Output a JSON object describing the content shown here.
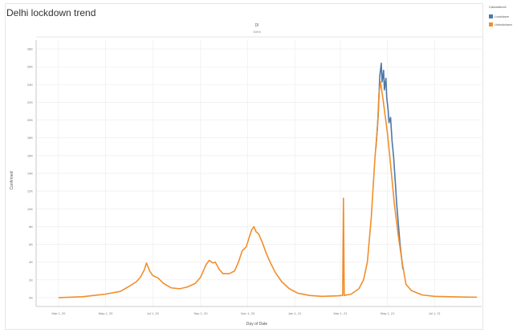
{
  "chart_data": {
    "type": "line",
    "title": "Delhi lockdown trend",
    "header": "Dl",
    "subheader": "Delhi",
    "xlabel": "Day of Date",
    "ylabel": "Confirmed",
    "legend_title": "Calculation1",
    "legend_position": "right",
    "grid": true,
    "x_ticks": [
      "Mar 1, 20",
      "May 1, 20",
      "Jul 1, 20",
      "Sep 1, 20",
      "Nov 1, 20",
      "Jan 1, 21",
      "Mar 1, 21",
      "May 1, 21",
      "Jul 1, 21"
    ],
    "y_ticks": [
      "0K",
      "2K",
      "4K",
      "6K",
      "8K",
      "10K",
      "12K",
      "14K",
      "16K",
      "18K",
      "20K",
      "22K",
      "24K",
      "26K",
      "28K"
    ],
    "xlim": [
      "2020-02-01",
      "2021-08-31"
    ],
    "ylim": [
      -1000,
      29000
    ],
    "series": [
      {
        "name": "Lockdown",
        "color": "#4e79a7",
        "points": [
          [
            "2021-04-16",
            16800
          ],
          [
            "2021-04-19",
            20500
          ],
          [
            "2021-04-21",
            24900
          ],
          [
            "2021-04-23",
            26400
          ],
          [
            "2021-04-24",
            24300
          ],
          [
            "2021-04-26",
            25600
          ],
          [
            "2021-04-27",
            23400
          ],
          [
            "2021-04-29",
            24700
          ],
          [
            "2021-04-30",
            22600
          ],
          [
            "2021-05-02",
            21000
          ],
          [
            "2021-05-03",
            19700
          ],
          [
            "2021-05-05",
            20300
          ],
          [
            "2021-05-07",
            17600
          ],
          [
            "2021-05-09",
            15800
          ],
          [
            "2021-05-11",
            13200
          ],
          [
            "2021-05-13",
            10500
          ],
          [
            "2021-05-15",
            8400
          ],
          [
            "2021-05-17",
            6300
          ],
          [
            "2021-05-19",
            4700
          ],
          [
            "2021-05-21",
            3200
          ]
        ]
      },
      {
        "name": "Unlockdown",
        "color": "#f28e2b",
        "points": [
          [
            "2020-03-01",
            0
          ],
          [
            "2020-04-01",
            100
          ],
          [
            "2020-05-01",
            400
          ],
          [
            "2020-05-20",
            700
          ],
          [
            "2020-06-01",
            1300
          ],
          [
            "2020-06-10",
            1800
          ],
          [
            "2020-06-15",
            2300
          ],
          [
            "2020-06-20",
            3100
          ],
          [
            "2020-06-23",
            3900
          ],
          [
            "2020-06-27",
            3000
          ],
          [
            "2020-07-01",
            2500
          ],
          [
            "2020-07-08",
            2200
          ],
          [
            "2020-07-15",
            1600
          ],
          [
            "2020-07-25",
            1100
          ],
          [
            "2020-08-05",
            1000
          ],
          [
            "2020-08-15",
            1200
          ],
          [
            "2020-08-25",
            1600
          ],
          [
            "2020-09-01",
            2300
          ],
          [
            "2020-09-08",
            3700
          ],
          [
            "2020-09-12",
            4200
          ],
          [
            "2020-09-17",
            3900
          ],
          [
            "2020-09-20",
            4000
          ],
          [
            "2020-09-25",
            3200
          ],
          [
            "2020-09-30",
            2700
          ],
          [
            "2020-10-08",
            2700
          ],
          [
            "2020-10-15",
            3000
          ],
          [
            "2020-10-20",
            4000
          ],
          [
            "2020-10-25",
            5300
          ],
          [
            "2020-10-30",
            5700
          ],
          [
            "2020-11-03",
            6800
          ],
          [
            "2020-11-06",
            7600
          ],
          [
            "2020-11-09",
            8000
          ],
          [
            "2020-11-12",
            7400
          ],
          [
            "2020-11-15",
            7200
          ],
          [
            "2020-11-20",
            6200
          ],
          [
            "2020-11-25",
            5000
          ],
          [
            "2020-11-30",
            4000
          ],
          [
            "2020-12-07",
            2800
          ],
          [
            "2020-12-15",
            1800
          ],
          [
            "2020-12-25",
            1000
          ],
          [
            "2021-01-05",
            500
          ],
          [
            "2021-01-20",
            250
          ],
          [
            "2021-02-05",
            150
          ],
          [
            "2021-02-25",
            200
          ],
          [
            "2021-03-04",
            250
          ],
          [
            "2021-03-05",
            11200
          ],
          [
            "2021-03-06",
            250
          ],
          [
            "2021-03-15",
            400
          ],
          [
            "2021-03-25",
            1000
          ],
          [
            "2021-03-31",
            2000
          ],
          [
            "2021-04-05",
            4000
          ],
          [
            "2021-04-10",
            9000
          ],
          [
            "2021-04-15",
            16000
          ],
          [
            "2021-04-18",
            19000
          ],
          [
            "2021-04-20",
            23000
          ],
          [
            "2021-04-22",
            24300
          ],
          [
            "2021-04-25",
            22500
          ],
          [
            "2021-04-28",
            20500
          ],
          [
            "2021-05-01",
            18500
          ],
          [
            "2021-05-05",
            15000
          ],
          [
            "2021-05-10",
            10500
          ],
          [
            "2021-05-15",
            7000
          ],
          [
            "2021-05-20",
            4000
          ],
          [
            "2021-05-25",
            1500
          ],
          [
            "2021-06-01",
            800
          ],
          [
            "2021-06-15",
            300
          ],
          [
            "2021-07-01",
            150
          ],
          [
            "2021-08-01",
            80
          ],
          [
            "2021-08-25",
            50
          ]
        ]
      }
    ]
  }
}
